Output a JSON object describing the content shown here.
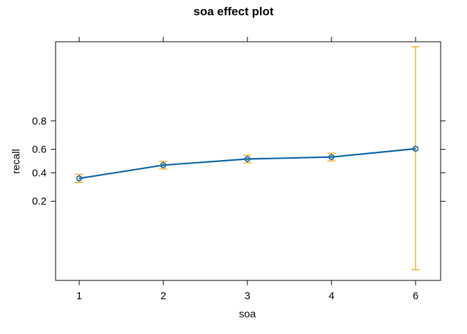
{
  "chart_data": {
    "type": "line",
    "title": "soa effect plot",
    "xlabel": "soa",
    "ylabel": "recall",
    "x_ticks": [
      "1",
      "2",
      "3",
      "4",
      "6"
    ],
    "y_ticks": [
      "0.2",
      "0.4",
      "0.6",
      "0.8"
    ],
    "y_tick_values": [
      0.2,
      0.4,
      0.6,
      0.8
    ],
    "y_scale": "logit",
    "ylim": [
      0.016,
      0.984
    ],
    "grid": false,
    "series": [
      {
        "x": [
          1,
          2,
          3,
          4,
          6
        ],
        "values": [
          0.355,
          0.465,
          0.518,
          0.535,
          0.605
        ],
        "lower": [
          0.323,
          0.432,
          0.485,
          0.501,
          0.023
        ],
        "upper": [
          0.388,
          0.498,
          0.551,
          0.568,
          0.981
        ]
      }
    ],
    "colors": {
      "line": "#0b63a5",
      "error_bar": "#e69f00",
      "frame": "#000000"
    }
  }
}
